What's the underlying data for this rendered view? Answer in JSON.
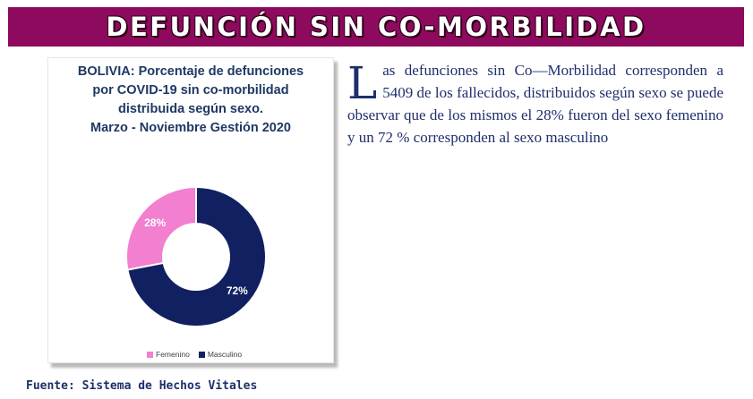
{
  "banner": {
    "title": "DEFUNCIÓN SIN CO-MORBILIDAD"
  },
  "chart_data": {
    "type": "pie",
    "title_lines": [
      "BOLIVIA: Porcentaje de defunciones",
      "por COVID-19 sin co-morbilidad",
      "distribuida según sexo.",
      "Marzo - Noviembre Gestión 2020"
    ],
    "categories": [
      "Femenino",
      "Masculino"
    ],
    "values": [
      28,
      72
    ],
    "data_labels": [
      "28%",
      "72%"
    ],
    "colors": [
      "#f27fd0",
      "#112060"
    ],
    "legend_position": "bottom"
  },
  "paragraph": {
    "drop_cap": "L",
    "text": "as defunciones sin  Co—Morbilidad corresponden a 5409 de los fallecidos, distribuidos según sexo se puede observar que de los mismos el 28% fueron del sexo femenino y un 72 % corresponden al sexo masculino"
  },
  "source": "Fuente: Sistema de Hechos Vitales"
}
